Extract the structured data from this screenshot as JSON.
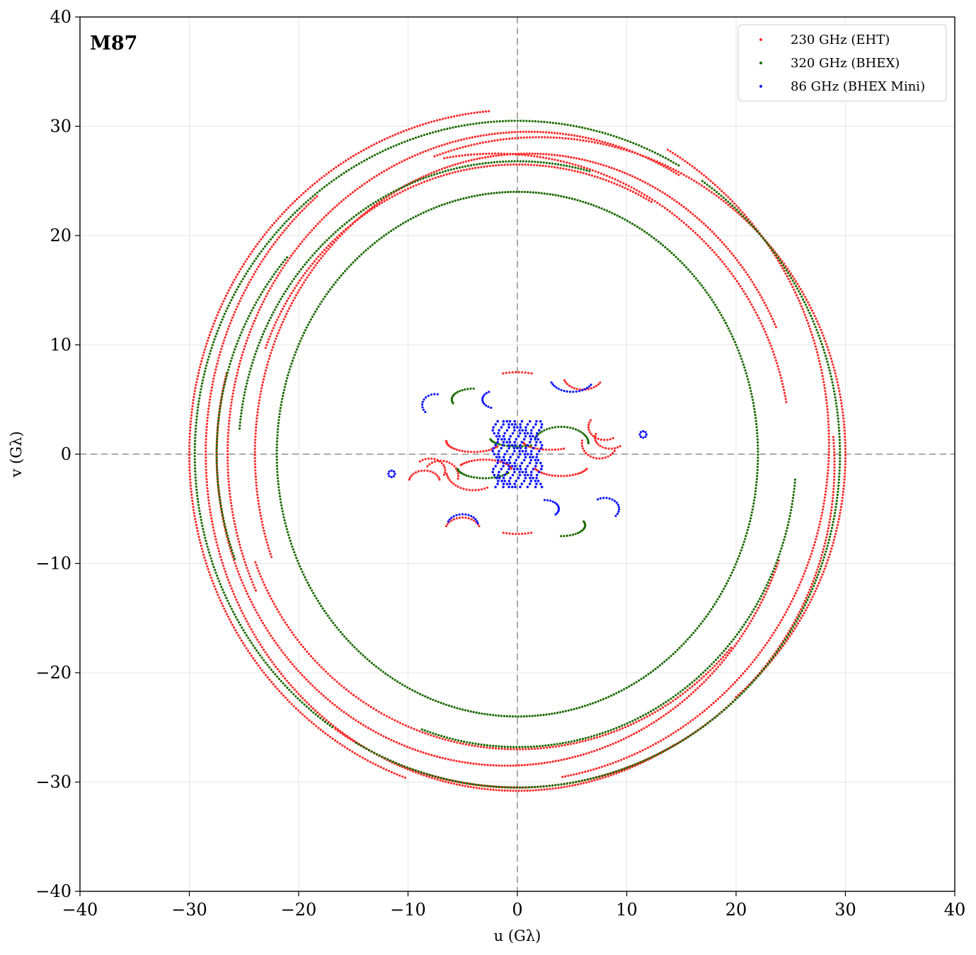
{
  "chart_data": {
    "type": "scatter",
    "title": "M87",
    "xlabel": "u (Gλ)",
    "ylabel": "v (Gλ)",
    "xlim": [
      -40,
      40
    ],
    "ylim": [
      -40,
      40
    ],
    "xticks": [
      -40,
      -30,
      -20,
      -10,
      0,
      10,
      20,
      30,
      40
    ],
    "yticks": [
      -40,
      -30,
      -20,
      -10,
      0,
      10,
      20,
      30,
      40
    ],
    "xtick_labels": [
      "−40",
      "−30",
      "−20",
      "−10",
      "0",
      "10",
      "20",
      "30",
      "40"
    ],
    "ytick_labels": [
      "−40",
      "−30",
      "−20",
      "−10",
      "0",
      "10",
      "20",
      "30",
      "40"
    ],
    "grid": true,
    "zero_lines": true,
    "legend_position": "top-right",
    "series": [
      {
        "name": "230 GHz (EHT)",
        "color": "#ff2a2a",
        "tracks": [
          {
            "center": [
              0,
              0
            ],
            "radius": [
              30,
              31.5
            ],
            "start": 95,
            "end": 250
          },
          {
            "center": [
              0,
              0
            ],
            "radius": [
              28.5,
              30.8
            ],
            "start": 130,
            "end": 300
          },
          {
            "center": [
              1,
              0
            ],
            "radius": [
              27.5,
              29.5
            ],
            "start": 60,
            "end": 205
          },
          {
            "center": [
              -1,
              1
            ],
            "radius": [
              29.5,
              31
            ],
            "start": 280,
            "end": 420
          },
          {
            "center": [
              0,
              -1
            ],
            "radius": [
              29,
              29.5
            ],
            "start": 235,
            "end": 365
          },
          {
            "center": [
              1,
              0
            ],
            "radius": [
              25,
              27.5
            ],
            "start": 25,
            "end": 200
          },
          {
            "center": [
              -1,
              0
            ],
            "radius": [
              26.5,
              28.5
            ],
            "start": 165,
            "end": 340
          },
          {
            "center": [
              2,
              0
            ],
            "radius": [
              28,
              29
            ],
            "start": 310,
            "end": 470
          },
          {
            "center": [
              0,
              1
            ],
            "radius": [
              24.5,
              25.5
            ],
            "start": 60,
            "end": 160
          },
          {
            "center": [
              0,
              -1
            ],
            "radius": [
              25.5,
              26
            ],
            "start": 200,
            "end": 320
          },
          {
            "center": [
              -2,
              0
            ],
            "radius": [
              27,
              27.5
            ],
            "start": 10,
            "end": 100
          },
          {
            "center": [
              0,
              0
            ],
            "radius": [
              7.5,
              7.5
            ],
            "start": 80,
            "end": 100
          },
          {
            "center": [
              0,
              0
            ],
            "radius": [
              7.3,
              7.3
            ],
            "start": 260,
            "end": 280
          },
          {
            "center": [
              6,
              7.2
            ],
            "radius": [
              1.8,
              1.3
            ],
            "start": 200,
            "end": 330
          },
          {
            "center": [
              8,
              2.5
            ],
            "radius": [
              1.5,
              1.2
            ],
            "start": 150,
            "end": 300
          },
          {
            "center": [
              8.5,
              1.5
            ],
            "radius": [
              1.4,
              1.0
            ],
            "start": 160,
            "end": 310
          },
          {
            "center": [
              7.5,
              1
            ],
            "radius": [
              1.6,
              1.4
            ],
            "start": 170,
            "end": 330
          },
          {
            "center": [
              -8,
              -1.5
            ],
            "radius": [
              1.4,
              1.1
            ],
            "start": -20,
            "end": 130
          },
          {
            "center": [
              -7,
              -2
            ],
            "radius": [
              1.6,
              1.4
            ],
            "start": -10,
            "end": 140
          },
          {
            "center": [
              -8.5,
              -2.5
            ],
            "radius": [
              1.4,
              1.0
            ],
            "start": 10,
            "end": 170
          },
          {
            "center": [
              -5,
              -7
            ],
            "radius": [
              1.6,
              1.2
            ],
            "start": 20,
            "end": 160
          },
          {
            "center": [
              -4,
              1.2
            ],
            "radius": [
              2.5,
              1.0
            ],
            "start": 180,
            "end": 330
          },
          {
            "center": [
              3,
              1.2
            ],
            "radius": [
              2.5,
              0.8
            ],
            "start": 190,
            "end": 300
          },
          {
            "center": [
              -3,
              -1.5
            ],
            "radius": [
              2.5,
              1.0
            ],
            "start": 10,
            "end": 150
          },
          {
            "center": [
              4,
              -1.0
            ],
            "radius": [
              2.5,
              1.0
            ],
            "start": 200,
            "end": 340
          },
          {
            "center": [
              -4,
              -1.5
            ],
            "radius": [
              2.5,
              1.8
            ],
            "start": 190,
            "end": 300
          }
        ]
      },
      {
        "name": "320 GHz (BHEX)",
        "color": "#1a6b00",
        "tracks": [
          {
            "center": [
              0,
              0
            ],
            "radius": [
              29.5,
              30.5
            ],
            "start": 60,
            "end": 235
          },
          {
            "center": [
              0,
              0
            ],
            "radius": [
              29.5,
              30.5
            ],
            "start": 240,
            "end": 415
          },
          {
            "center": [
              0,
              0
            ],
            "radius": [
              22,
              24
            ],
            "start": 30,
            "end": 210
          },
          {
            "center": [
              0,
              0
            ],
            "radius": [
              22,
              24
            ],
            "start": 210,
            "end": 390
          },
          {
            "center": [
              0,
              0
            ],
            "radius": [
              25.5,
              26.8
            ],
            "start": 75,
            "end": 175
          },
          {
            "center": [
              0,
              0
            ],
            "radius": [
              25.5,
              26.8
            ],
            "start": 250,
            "end": 355
          },
          {
            "center": [
              0,
              0
            ],
            "radius": [
              27.5,
              28
            ],
            "start": 140,
            "end": 200
          },
          {
            "center": [
              -4,
              5
            ],
            "radius": [
              2.0,
              1.0
            ],
            "start": 90,
            "end": 200
          },
          {
            "center": [
              4,
              1
            ],
            "radius": [
              2.5,
              1.5
            ],
            "start": 0,
            "end": 160
          },
          {
            "center": [
              -3,
              -1.2
            ],
            "radius": [
              2.5,
              1.0
            ],
            "start": 190,
            "end": 330
          },
          {
            "center": [
              4,
              -6.5
            ],
            "radius": [
              2.2,
              1.0
            ],
            "start": 270,
            "end": 380
          },
          {
            "center": [
              0,
              1.5
            ],
            "radius": [
              2.5,
              0.8
            ],
            "start": 190,
            "end": 300
          }
        ]
      },
      {
        "name": "86 GHz (BHEX Mini)",
        "color": "#0a12ff",
        "tracks": [
          {
            "center": [
              5,
              7
            ],
            "radius": [
              2.0,
              1.3
            ],
            "start": 200,
            "end": 330
          },
          {
            "center": [
              -7.5,
              4.5
            ],
            "radius": [
              1.2,
              1.0
            ],
            "start": 80,
            "end": 220
          },
          {
            "center": [
              -2,
              5
            ],
            "radius": [
              1.2,
              0.8
            ],
            "start": 120,
            "end": 250
          },
          {
            "center": [
              8,
              -5
            ],
            "radius": [
              1.3,
              1.0
            ],
            "start": -40,
            "end": 120
          },
          {
            "center": [
              2.5,
              -5
            ],
            "radius": [
              1.3,
              0.8
            ],
            "start": -40,
            "end": 90
          },
          {
            "center": [
              -5,
              -6.5
            ],
            "radius": [
              1.4,
              1.0
            ],
            "start": 10,
            "end": 160
          },
          {
            "center": [
              -11.5,
              -1.8
            ],
            "radius": [
              0.3,
              0.3
            ],
            "start": 0,
            "end": 360
          },
          {
            "center": [
              11.5,
              1.8
            ],
            "radius": [
              0.3,
              0.3
            ],
            "start": 0,
            "end": 360
          }
        ],
        "core": {
          "u_range": [
            -2,
            2
          ],
          "v_range": [
            -3,
            3
          ]
        }
      }
    ]
  }
}
